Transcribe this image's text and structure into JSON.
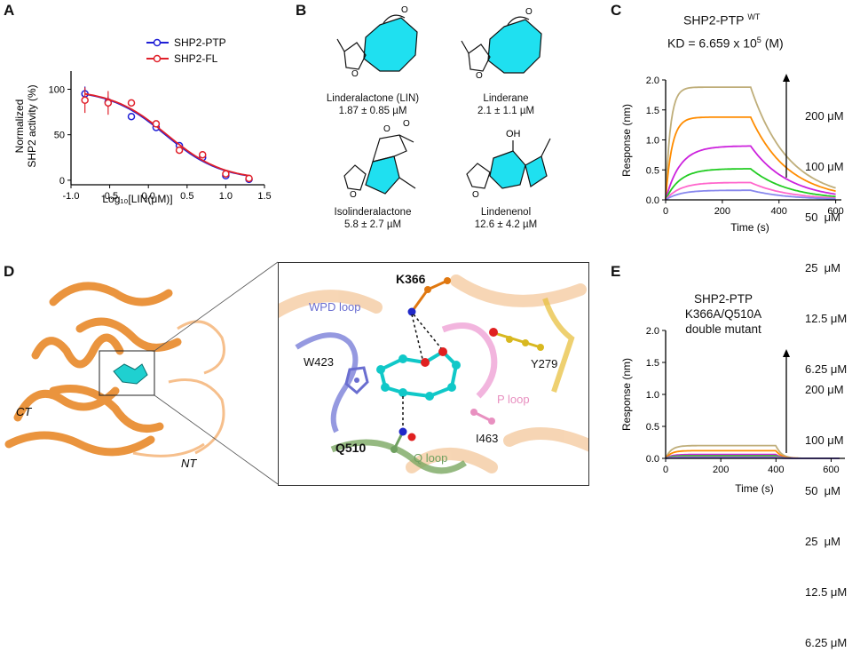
{
  "panels": {
    "A": {
      "letter": "A",
      "legend": [
        "SHP2-PTP",
        "SHP2-FL"
      ],
      "xlabel": "Log₁₀[LIN(μM)]",
      "ylabel_line1": "Normalized",
      "ylabel_line2": "SHP2 activity (%)",
      "xticks": [
        "-1.0",
        "-0.5",
        "0.0",
        "0.5",
        "1.0",
        "1.5"
      ],
      "yticks": [
        "0",
        "50",
        "100"
      ],
      "colors": {
        "ptp": "#1f1fd6",
        "fl": "#e0202a"
      }
    },
    "B": {
      "letter": "B",
      "compounds": [
        {
          "name": "Linderalactone (LIN)",
          "value": "1.87 ± 0.85 µM"
        },
        {
          "name": "Linderane",
          "value": "2.1 ± 1.1 µM"
        },
        {
          "name": "Isolinderalactone",
          "value": "5.8 ± 2.7 µM"
        },
        {
          "name": "Lindenenol",
          "value": "12.6 ± 4.2 µM"
        }
      ],
      "atom_labels": {
        "O": "O",
        "OH": "OH"
      },
      "ring_color": "#1fe0f0"
    },
    "C": {
      "letter": "C",
      "title": "SHP2-PTP",
      "title_sup": "WT",
      "kd": "KD = 6.659 x 10",
      "kd_exp": "5",
      "kd_unit": "(M)",
      "xlabel": "Time (s)",
      "ylabel": "Response (nm)",
      "xticks": [
        "0",
        "200",
        "400",
        "600"
      ],
      "yticks": [
        "0.0",
        "0.5",
        "1.0",
        "1.5",
        "2.0"
      ],
      "concentrations": [
        "200 μM",
        "100 μM",
        "50  μM",
        "25  μM",
        "12.5 μM",
        "6.25 μM"
      ]
    },
    "D": {
      "letter": "D",
      "labels": {
        "ct": "CT",
        "nt": "NT",
        "k366": "K366",
        "wpd": "WPD loop",
        "w423": "W423",
        "y279": "Y279",
        "ploop": "P loop",
        "i463": "I463",
        "q510": "Q510",
        "qloop": "Q loop"
      }
    },
    "E": {
      "letter": "E",
      "title_line1": "SHP2-PTP",
      "title_line2": "K366A/Q510A",
      "title_line3": "double mutant",
      "xlabel": "Time (s)",
      "ylabel": "Response (nm)",
      "xticks": [
        "0",
        "200",
        "400",
        "600"
      ],
      "yticks": [
        "0.0",
        "0.5",
        "1.0",
        "1.5",
        "2.0"
      ],
      "concentrations": [
        "200 μM",
        "100 μM",
        "50  μM",
        "25  μM",
        "12.5 μM",
        "6.25 μM"
      ]
    }
  },
  "chart_data": [
    {
      "type": "scatter",
      "panel": "A",
      "xlabel": "Log₁₀[LIN(μM)]",
      "ylabel": "Normalized SHP2 activity (%)",
      "xlim": [
        -1.0,
        1.5
      ],
      "ylim": [
        -5,
        120
      ],
      "series": [
        {
          "name": "SHP2-PTP",
          "color": "#1f1fd6",
          "x": [
            -0.82,
            -0.52,
            -0.22,
            0.1,
            0.4,
            0.7,
            1.0,
            1.3
          ],
          "y": [
            95,
            86,
            70,
            58,
            38,
            25,
            5,
            1
          ],
          "err": [
            8,
            6,
            3,
            3,
            3,
            4,
            3,
            2
          ]
        },
        {
          "name": "SHP2-FL",
          "color": "#e0202a",
          "x": [
            -0.82,
            -0.52,
            -0.22,
            0.1,
            0.4,
            0.7,
            1.0,
            1.3
          ],
          "y": [
            88,
            85,
            85,
            62,
            33,
            28,
            7,
            2
          ],
          "err": [
            14,
            13,
            3,
            3,
            3,
            4,
            3,
            2
          ]
        }
      ]
    },
    {
      "type": "line",
      "panel": "C",
      "xlabel": "Time (s)",
      "ylabel": "Response (nm)",
      "xlim": [
        0,
        620
      ],
      "ylim": [
        0,
        2.0
      ],
      "association_end": 300,
      "series": [
        {
          "name": "200 μM",
          "color": "#bfae7a",
          "plateau": 1.88,
          "kon": 0.06,
          "koff": 0.0075
        },
        {
          "name": "100 μM",
          "color": "#ff8c00",
          "plateau": 1.38,
          "kon": 0.045,
          "koff": 0.0075
        },
        {
          "name": "50  μM",
          "color": "#cc22dd",
          "plateau": 0.9,
          "kon": 0.02,
          "koff": 0.0075
        },
        {
          "name": "25  μM",
          "color": "#22cc22",
          "plateau": 0.52,
          "kon": 0.02,
          "koff": 0.0075
        },
        {
          "name": "12.5 μM",
          "color": "#ff66cc",
          "plateau": 0.29,
          "kon": 0.02,
          "koff": 0.0075
        },
        {
          "name": "6.25 μM",
          "color": "#8888ee",
          "plateau": 0.16,
          "kon": 0.02,
          "koff": 0.0075
        }
      ]
    },
    {
      "type": "line",
      "panel": "E",
      "xlabel": "Time (s)",
      "ylabel": "Response (nm)",
      "xlim": [
        0,
        650
      ],
      "ylim": [
        0,
        2.0
      ],
      "association_end": 400,
      "series": [
        {
          "name": "200 μM",
          "color": "#bfae7a",
          "plateau": 0.2,
          "kon": 0.05,
          "koff": 0.05
        },
        {
          "name": "100 μM",
          "color": "#ff8c00",
          "plateau": 0.12,
          "kon": 0.05,
          "koff": 0.05
        },
        {
          "name": "50  μM",
          "color": "#cc22dd",
          "plateau": 0.06,
          "kon": 0.05,
          "koff": 0.05
        },
        {
          "name": "25  μM",
          "color": "#22cc22",
          "plateau": 0.04,
          "kon": 0.05,
          "koff": 0.05
        },
        {
          "name": "12.5 μM",
          "color": "#ff66cc",
          "plateau": 0.02,
          "kon": 0.05,
          "koff": 0.05
        },
        {
          "name": "6.25 μM",
          "color": "#6666ee",
          "plateau": 0.01,
          "kon": 0.05,
          "koff": 0.05
        }
      ]
    }
  ]
}
